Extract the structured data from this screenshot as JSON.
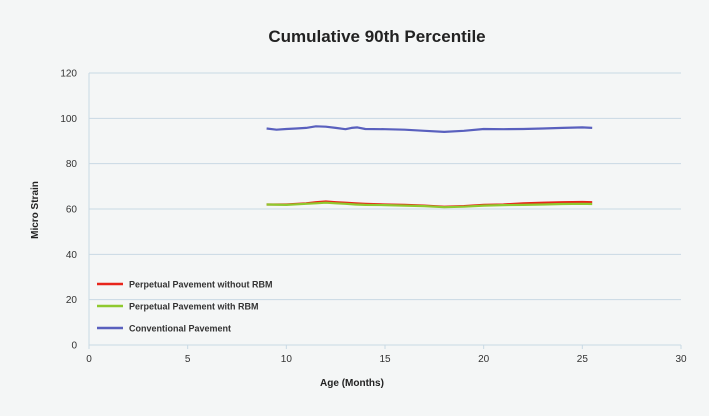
{
  "chart_data": {
    "type": "line",
    "title": "Cumulative 90th Percentile",
    "xlabel": "Age (Months)",
    "ylabel": "Micro Strain",
    "xlim": [
      0,
      30
    ],
    "ylim": [
      0,
      120
    ],
    "xticks": [
      0,
      5,
      10,
      15,
      20,
      25,
      30
    ],
    "yticks": [
      0,
      20,
      40,
      60,
      80,
      100,
      120
    ],
    "grid": "horizontal",
    "legend_position": "bottom-left",
    "series": [
      {
        "name": "Perpetual Pavement without RBM",
        "color": "#e8251b",
        "x": [
          9,
          10,
          11,
          11.5,
          12,
          12.5,
          13,
          13.5,
          14,
          15,
          16,
          17,
          18,
          19,
          20,
          21,
          22,
          23,
          24,
          25,
          25.5
        ],
        "y": [
          62,
          62,
          62.5,
          63,
          63.3,
          63,
          62.8,
          62.5,
          62.3,
          62,
          61.8,
          61.5,
          61,
          61.3,
          61.8,
          62,
          62.5,
          62.8,
          63,
          63.1,
          63
        ]
      },
      {
        "name": "Perpetual Pavement with RBM",
        "color": "#8fc92e",
        "x": [
          9,
          10,
          11,
          11.5,
          12,
          12.5,
          13,
          13.5,
          14,
          15,
          16,
          17,
          18,
          19,
          20,
          21,
          22,
          23,
          24,
          25,
          25.5
        ],
        "y": [
          62,
          61.8,
          62.3,
          62.5,
          62.8,
          62.5,
          62.3,
          62,
          61.8,
          61.7,
          61.5,
          61.3,
          60.8,
          61,
          61.5,
          61.7,
          61.8,
          62,
          62.2,
          62.3,
          62.2
        ]
      },
      {
        "name": "Conventional Pavement",
        "color": "#5960be",
        "x": [
          9,
          9.5,
          10,
          10.5,
          11,
          11.5,
          12,
          12.5,
          13,
          13.3,
          13.6,
          14,
          15,
          16,
          17,
          18,
          19,
          20,
          21,
          22,
          23,
          24,
          25,
          25.5
        ],
        "y": [
          95.5,
          95,
          95.3,
          95.5,
          95.8,
          96.5,
          96.3,
          95.8,
          95.2,
          95.8,
          96,
          95.3,
          95.2,
          95,
          94.5,
          94,
          94.5,
          95.3,
          95.2,
          95.3,
          95.5,
          95.8,
          96,
          95.8
        ]
      }
    ]
  }
}
